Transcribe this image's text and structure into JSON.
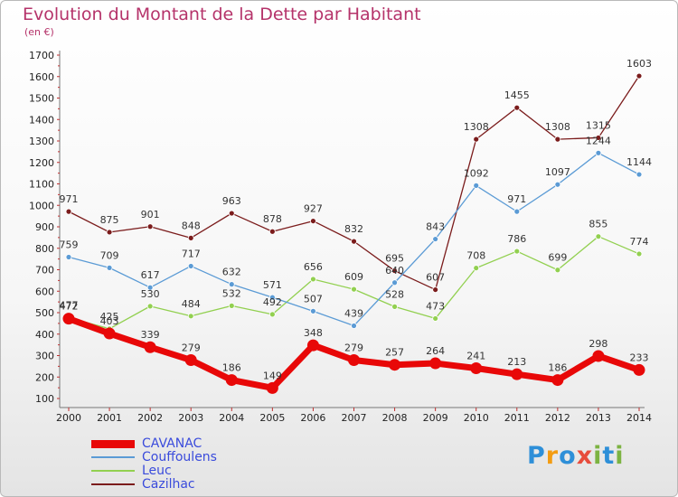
{
  "header": {
    "title": "Evolution du Montant de la Dette par Habitant",
    "subtitle": "(en €)"
  },
  "chart_data": {
    "type": "line",
    "title": "Evolution du Montant de la Dette par Habitant",
    "subtitle": "(en €)",
    "xlabel": "",
    "ylabel": "",
    "x": [
      "2000",
      "2001",
      "2002",
      "2003",
      "2004",
      "2005",
      "2006",
      "2007",
      "2008",
      "2009",
      "2010",
      "2011",
      "2012",
      "2013",
      "2014"
    ],
    "ylim": [
      100,
      1700
    ],
    "yticks": [
      100,
      200,
      300,
      400,
      500,
      600,
      700,
      800,
      900,
      1000,
      1100,
      1200,
      1300,
      1400,
      1500,
      1600,
      1700
    ],
    "grid": false,
    "legend_position": "bottom-left",
    "series": [
      {
        "name": "CAVANAC",
        "color": "#e80808",
        "values": [
          472,
          403,
          339,
          279,
          186,
          149,
          348,
          279,
          257,
          264,
          241,
          213,
          186,
          298,
          233
        ]
      },
      {
        "name": "Couffoulens",
        "color": "#5b9bd5",
        "values": [
          759,
          709,
          617,
          717,
          632,
          571,
          507,
          439,
          640,
          843,
          1092,
          971,
          1097,
          1244,
          1144
        ]
      },
      {
        "name": "Leuc",
        "color": "#92d050",
        "values": [
          477,
          425,
          530,
          484,
          532,
          492,
          656,
          609,
          528,
          473,
          708,
          786,
          699,
          855,
          774
        ]
      },
      {
        "name": "Cazilhac",
        "color": "#7b1c1c",
        "values": [
          971,
          875,
          901,
          848,
          963,
          878,
          927,
          832,
          695,
          607,
          1308,
          1455,
          1308,
          1315,
          1603
        ]
      }
    ]
  },
  "logo": {
    "letters": [
      "P",
      "r",
      "o",
      "x",
      "i",
      "t",
      "i"
    ],
    "colors": [
      "#2e8fd8",
      "#f39c12",
      "#2e8fd8",
      "#e74c3c",
      "#7cb342",
      "#2e8fd8",
      "#7cb342"
    ]
  }
}
